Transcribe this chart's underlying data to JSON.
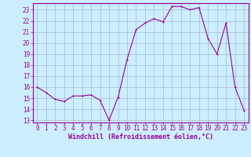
{
  "x": [
    0,
    1,
    2,
    3,
    4,
    5,
    6,
    7,
    8,
    9,
    10,
    11,
    12,
    13,
    14,
    15,
    16,
    17,
    18,
    19,
    20,
    21,
    22,
    23
  ],
  "y": [
    16.0,
    15.5,
    14.9,
    14.7,
    15.2,
    15.2,
    15.3,
    14.8,
    13.0,
    15.1,
    18.5,
    21.2,
    21.8,
    22.2,
    21.9,
    23.3,
    23.3,
    23.0,
    23.2,
    20.4,
    19.0,
    21.8,
    16.0,
    13.9
  ],
  "line_color": "#990099",
  "marker_color": "#990099",
  "bg_color": "#cceeff",
  "grid_color": "#aabbcc",
  "xlabel": "Windchill (Refroidissement éolien,°C)",
  "xlabel_color": "#990099",
  "tick_color": "#990099",
  "spine_color": "#990099",
  "ylim": [
    12.8,
    23.6
  ],
  "xlim": [
    -0.5,
    23.5
  ],
  "yticks": [
    13,
    14,
    15,
    16,
    17,
    18,
    19,
    20,
    21,
    22,
    23
  ],
  "xticks": [
    0,
    1,
    2,
    3,
    4,
    5,
    6,
    7,
    8,
    9,
    10,
    11,
    12,
    13,
    14,
    15,
    16,
    17,
    18,
    19,
    20,
    21,
    22,
    23
  ],
  "tick_fontsize": 5.5,
  "xlabel_fontsize": 6.0,
  "marker_size": 2.0,
  "line_width": 0.8
}
